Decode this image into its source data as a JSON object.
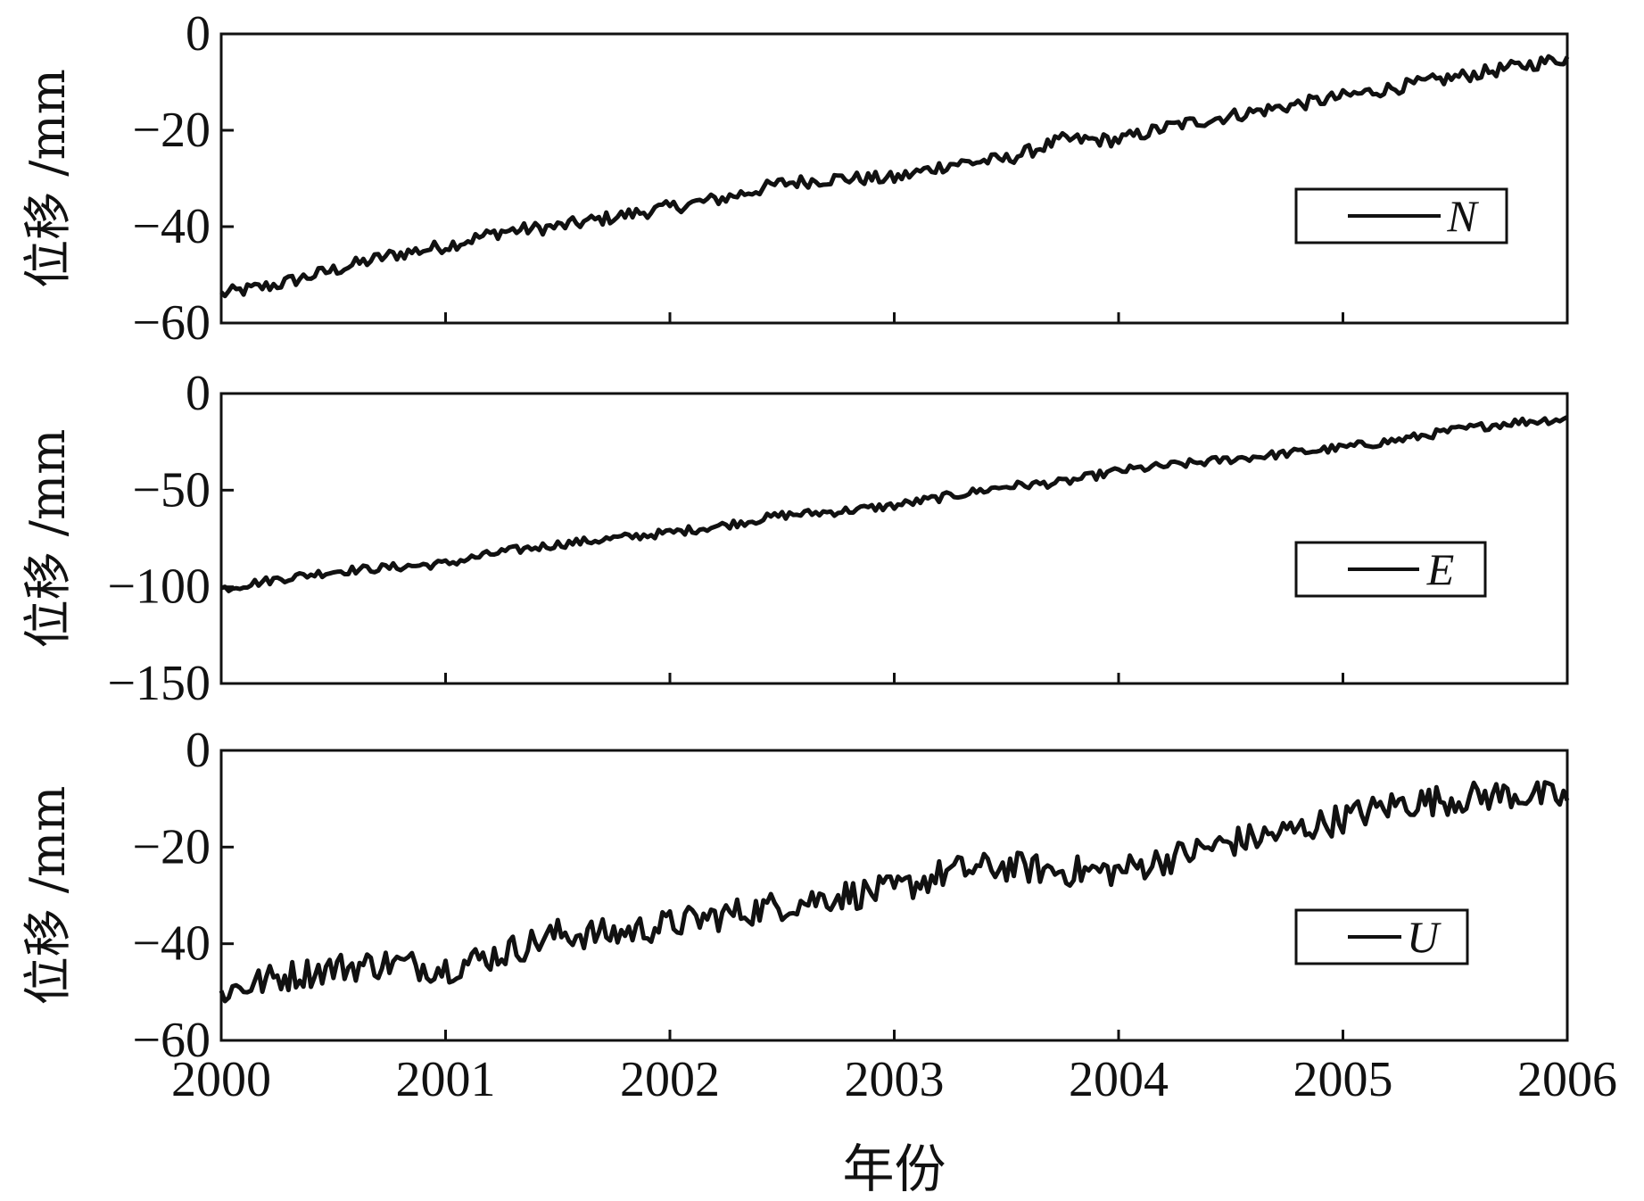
{
  "chart_data": [
    {
      "type": "line",
      "panel": "N",
      "ylabel": "位移 /mm",
      "ylim": [
        -60,
        0
      ],
      "yticks": [
        0,
        -20,
        -40,
        -60
      ],
      "ytick_labels": [
        "0",
        "−20",
        "−40",
        "−60"
      ],
      "xlim": [
        2000,
        2006
      ],
      "legend": "right",
      "series": [
        {
          "name": "N",
          "x": [
            2000.0,
            2000.25,
            2000.5,
            2000.75,
            2001.0,
            2001.25,
            2001.5,
            2001.75,
            2002.0,
            2002.25,
            2002.5,
            2002.75,
            2003.0,
            2003.25,
            2003.5,
            2003.75,
            2004.0,
            2004.25,
            2004.5,
            2004.75,
            2005.0,
            2005.25,
            2005.5,
            2005.75,
            2006.0
          ],
          "y": [
            -54,
            -52,
            -49,
            -46,
            -44,
            -41,
            -40,
            -38,
            -36,
            -34,
            -31,
            -30,
            -30,
            -27,
            -26,
            -22,
            -22,
            -19,
            -17,
            -15,
            -13,
            -11,
            -9,
            -7,
            -5
          ]
        }
      ]
    },
    {
      "type": "line",
      "panel": "E",
      "ylabel": "位移 /mm",
      "ylim": [
        -150,
        0
      ],
      "yticks": [
        0,
        -50,
        -100,
        -150
      ],
      "ytick_labels": [
        "0",
        "−50",
        "−100",
        "−150"
      ],
      "xlim": [
        2000,
        2006
      ],
      "legend": "right",
      "series": [
        {
          "name": "E",
          "x": [
            2000.0,
            2000.25,
            2000.5,
            2000.75,
            2001.0,
            2001.25,
            2001.5,
            2001.75,
            2002.0,
            2002.25,
            2002.5,
            2002.75,
            2003.0,
            2003.25,
            2003.5,
            2003.75,
            2004.0,
            2004.25,
            2004.5,
            2004.75,
            2005.0,
            2005.25,
            2005.5,
            2005.75,
            2006.0
          ],
          "y": [
            -101,
            -96,
            -92,
            -90,
            -88,
            -82,
            -78,
            -75,
            -72,
            -68,
            -63,
            -61,
            -58,
            -53,
            -48,
            -46,
            -40,
            -37,
            -34,
            -31,
            -28,
            -24,
            -19,
            -15,
            -13
          ]
        }
      ]
    },
    {
      "type": "line",
      "panel": "U",
      "ylabel": "位移 /mm",
      "xlabel": "年份",
      "ylim": [
        -60,
        0
      ],
      "yticks": [
        0,
        -20,
        -40,
        -60
      ],
      "ytick_labels": [
        "0",
        "−20",
        "−40",
        "−60"
      ],
      "xlim": [
        2000,
        2006
      ],
      "xticks": [
        2000,
        2001,
        2002,
        2003,
        2004,
        2005,
        2006
      ],
      "xtick_labels": [
        "2000",
        "2001",
        "2002",
        "2003",
        "2004",
        "2005",
        "2006"
      ],
      "legend": "right",
      "series": [
        {
          "name": "U",
          "x": [
            2000.0,
            2000.25,
            2000.5,
            2000.75,
            2001.0,
            2001.25,
            2001.5,
            2001.75,
            2002.0,
            2002.25,
            2002.5,
            2002.75,
            2003.0,
            2003.25,
            2003.5,
            2003.75,
            2004.0,
            2004.25,
            2004.5,
            2004.75,
            2005.0,
            2005.25,
            2005.5,
            2005.75,
            2006.0
          ],
          "y": [
            -50,
            -47,
            -45,
            -44,
            -45,
            -42,
            -38,
            -38,
            -36,
            -34,
            -32,
            -30,
            -29,
            -25,
            -24,
            -25,
            -25,
            -22,
            -19,
            -17,
            -14,
            -11,
            -10,
            -9,
            -10
          ]
        }
      ]
    }
  ]
}
